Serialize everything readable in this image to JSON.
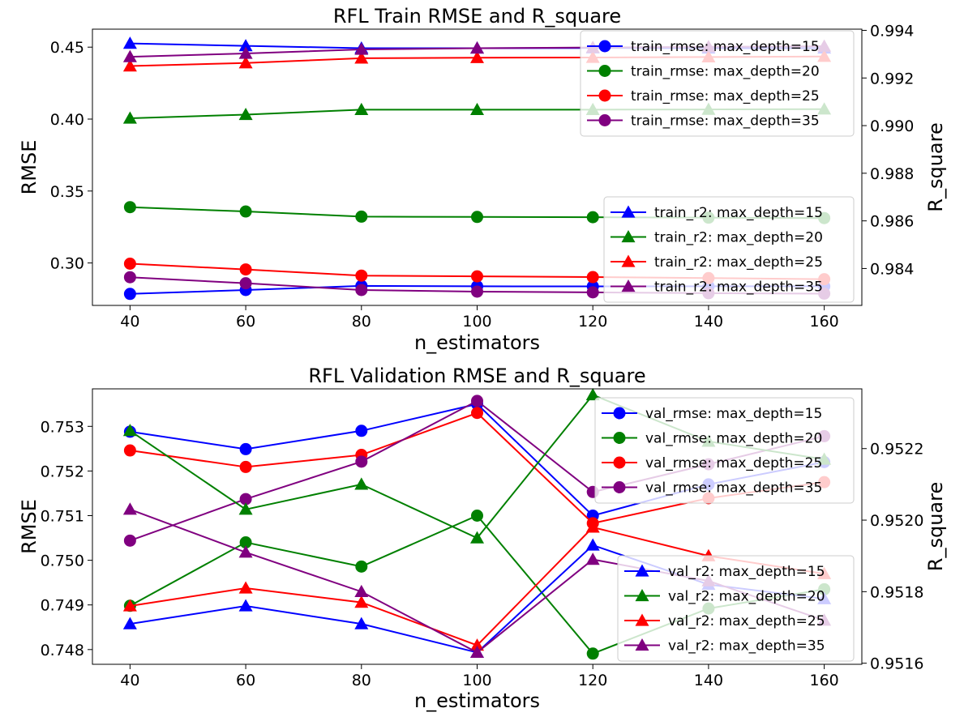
{
  "chart_data": [
    {
      "type": "line",
      "title": "RFL Train RMSE and R_square",
      "xlabel": "n_estimators",
      "ylabel": "RMSE",
      "y2label": "R_square",
      "x": [
        40,
        60,
        80,
        100,
        120,
        140,
        160
      ],
      "xticks": [
        "40",
        "60",
        "80",
        "100",
        "120",
        "140",
        "160"
      ],
      "ylim": [
        0.2705,
        0.4625
      ],
      "yticks": [
        "0.30",
        "0.35",
        "0.40",
        "0.45"
      ],
      "y2lim": [
        0.98245,
        0.99405
      ],
      "y2ticks": [
        "0.984",
        "0.986",
        "0.988",
        "0.990",
        "0.992",
        "0.994"
      ],
      "grid": false,
      "legend_placement": [
        "top-right",
        "center-right (lower)"
      ],
      "series": [
        {
          "name": "train_rmse: max_depth=15",
          "axis": "left",
          "marker": "circle",
          "color": "#0000ff",
          "values": [
            0.2785,
            0.2812,
            0.2841,
            0.2838,
            0.2837,
            0.2838,
            0.2838
          ]
        },
        {
          "name": "train_rmse: max_depth=20",
          "axis": "left",
          "marker": "circle",
          "color": "#008000",
          "values": [
            0.3388,
            0.3358,
            0.3322,
            0.332,
            0.3318,
            0.3315,
            0.3312
          ]
        },
        {
          "name": "train_rmse: max_depth=25",
          "axis": "left",
          "marker": "circle",
          "color": "#ff0000",
          "values": [
            0.2995,
            0.2955,
            0.2912,
            0.2907,
            0.2902,
            0.2895,
            0.2887
          ]
        },
        {
          "name": "train_rmse: max_depth=35",
          "axis": "left",
          "marker": "circle",
          "color": "#800080",
          "values": [
            0.2901,
            0.2859,
            0.2812,
            0.2801,
            0.2796,
            0.279,
            0.2787
          ]
        },
        {
          "name": "train_r2: max_depth=15",
          "axis": "right",
          "marker": "triangle",
          "color": "#0000ff",
          "values": [
            0.99345,
            0.99335,
            0.99325,
            0.99325,
            0.99326,
            0.99325,
            0.99325
          ]
        },
        {
          "name": "train_r2: max_depth=20",
          "axis": "right",
          "marker": "triangle",
          "color": "#008000",
          "values": [
            0.99031,
            0.99046,
            0.99067,
            0.99067,
            0.99067,
            0.99068,
            0.99069
          ]
        },
        {
          "name": "train_r2: max_depth=25",
          "axis": "right",
          "marker": "triangle",
          "color": "#ff0000",
          "values": [
            0.9925,
            0.99263,
            0.99283,
            0.99285,
            0.99286,
            0.99288,
            0.9929
          ]
        },
        {
          "name": "train_r2: max_depth=35",
          "axis": "right",
          "marker": "triangle",
          "color": "#800080",
          "values": [
            0.99289,
            0.99303,
            0.9932,
            0.99325,
            0.99328,
            0.99331,
            0.99333
          ]
        }
      ]
    },
    {
      "type": "line",
      "title": "RFL Validation RMSE and R_square",
      "xlabel": "n_estimators",
      "ylabel": "RMSE",
      "y2label": "R_square",
      "x": [
        40,
        60,
        80,
        100,
        120,
        140,
        160
      ],
      "xticks": [
        "40",
        "60",
        "80",
        "100",
        "120",
        "140",
        "160"
      ],
      "ylim": [
        0.74767,
        0.75384
      ],
      "yticks": [
        "0.748",
        "0.749",
        "0.750",
        "0.751",
        "0.752",
        "0.753"
      ],
      "y2lim": [
        0.951597,
        0.952367
      ],
      "y2ticks": [
        "0.9516",
        "0.9518",
        "0.9520",
        "0.9522"
      ],
      "grid": false,
      "legend_placement": [
        "top-right",
        "bottom-right"
      ],
      "series": [
        {
          "name": "val_rmse: max_depth=15",
          "axis": "left",
          "marker": "circle",
          "color": "#0000ff",
          "values": [
            0.75288,
            0.75249,
            0.7529,
            0.7535,
            0.751,
            0.7517,
            0.7522
          ]
        },
        {
          "name": "val_rmse: max_depth=20",
          "axis": "left",
          "marker": "circle",
          "color": "#008000",
          "values": [
            0.74898,
            0.7504,
            0.74986,
            0.751,
            0.74791,
            0.74892,
            0.74935
          ]
        },
        {
          "name": "val_rmse: max_depth=25",
          "axis": "left",
          "marker": "circle",
          "color": "#ff0000",
          "values": [
            0.75246,
            0.75209,
            0.75236,
            0.7533,
            0.75083,
            0.75139,
            0.75175
          ]
        },
        {
          "name": "val_rmse: max_depth=35",
          "axis": "left",
          "marker": "circle",
          "color": "#800080",
          "values": [
            0.75044,
            0.75137,
            0.75221,
            0.75357,
            0.75153,
            0.75215,
            0.75278
          ]
        },
        {
          "name": "val_r2: max_depth=15",
          "axis": "right",
          "marker": "triangle",
          "color": "#0000ff",
          "values": [
            0.95171,
            0.95176,
            0.95171,
            0.95163,
            0.95193,
            0.95182,
            0.95178
          ]
        },
        {
          "name": "val_r2: max_depth=20",
          "axis": "right",
          "marker": "triangle",
          "color": "#008000",
          "values": [
            0.95225,
            0.95203,
            0.9521,
            0.95195,
            0.95235,
            0.95222,
            0.95217
          ]
        },
        {
          "name": "val_r2: max_depth=25",
          "axis": "right",
          "marker": "triangle",
          "color": "#ff0000",
          "values": [
            0.95176,
            0.95181,
            0.95177,
            0.95165,
            0.95198,
            0.9519,
            0.95185
          ]
        },
        {
          "name": "val_r2: max_depth=35",
          "axis": "right",
          "marker": "triangle",
          "color": "#800080",
          "values": [
            0.95203,
            0.95191,
            0.9518,
            0.95163,
            0.95189,
            0.95183,
            0.95172
          ]
        }
      ]
    }
  ]
}
